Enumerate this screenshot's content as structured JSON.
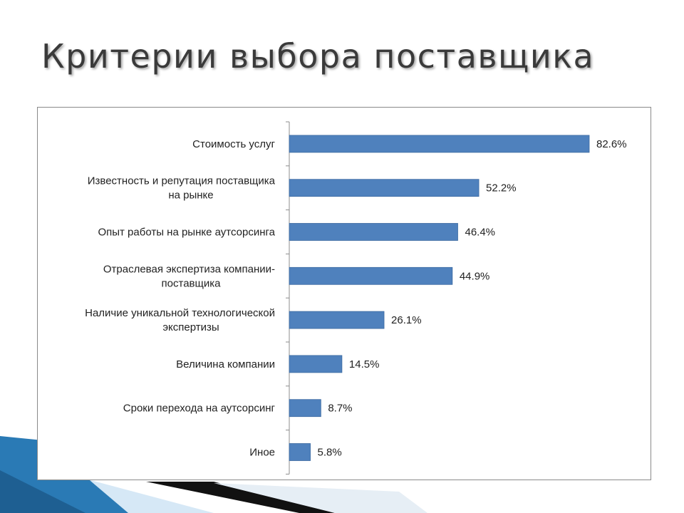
{
  "slide": {
    "title": "Критерии выбора поставщика"
  },
  "colors": {
    "bar": "#4f81bd",
    "bar_stroke": "#3c6aa1",
    "axis": "#8c8c8c",
    "text": "#222222",
    "deco_blue": "#2a7ab5",
    "deco_light": "#cfe4f4",
    "deco_dark": "#111111"
  },
  "chart_data": {
    "type": "bar",
    "orientation": "horizontal",
    "categories": [
      [
        "Стоимость услуг"
      ],
      [
        "Известность и репутация поставщика",
        "на рынке"
      ],
      [
        "Опыт работы на рынке аутсорсинга"
      ],
      [
        "Отраслевая экспертиза компании-",
        "поставщика"
      ],
      [
        "Наличие уникальной технологической",
        "экспертизы"
      ],
      [
        "Величина компании"
      ],
      [
        "Сроки перехода на аутсорсинг"
      ],
      [
        "Иное"
      ]
    ],
    "values": [
      82.6,
      52.2,
      46.4,
      44.9,
      26.1,
      14.5,
      8.7,
      5.8
    ],
    "value_labels": [
      "82.6%",
      "52.2%",
      "46.4%",
      "44.9%",
      "26.1%",
      "14.5%",
      "8.7%",
      "5.8%"
    ],
    "xlim": [
      0,
      100
    ],
    "grid": false,
    "legend": "none",
    "title": "",
    "xlabel": "",
    "ylabel": ""
  }
}
